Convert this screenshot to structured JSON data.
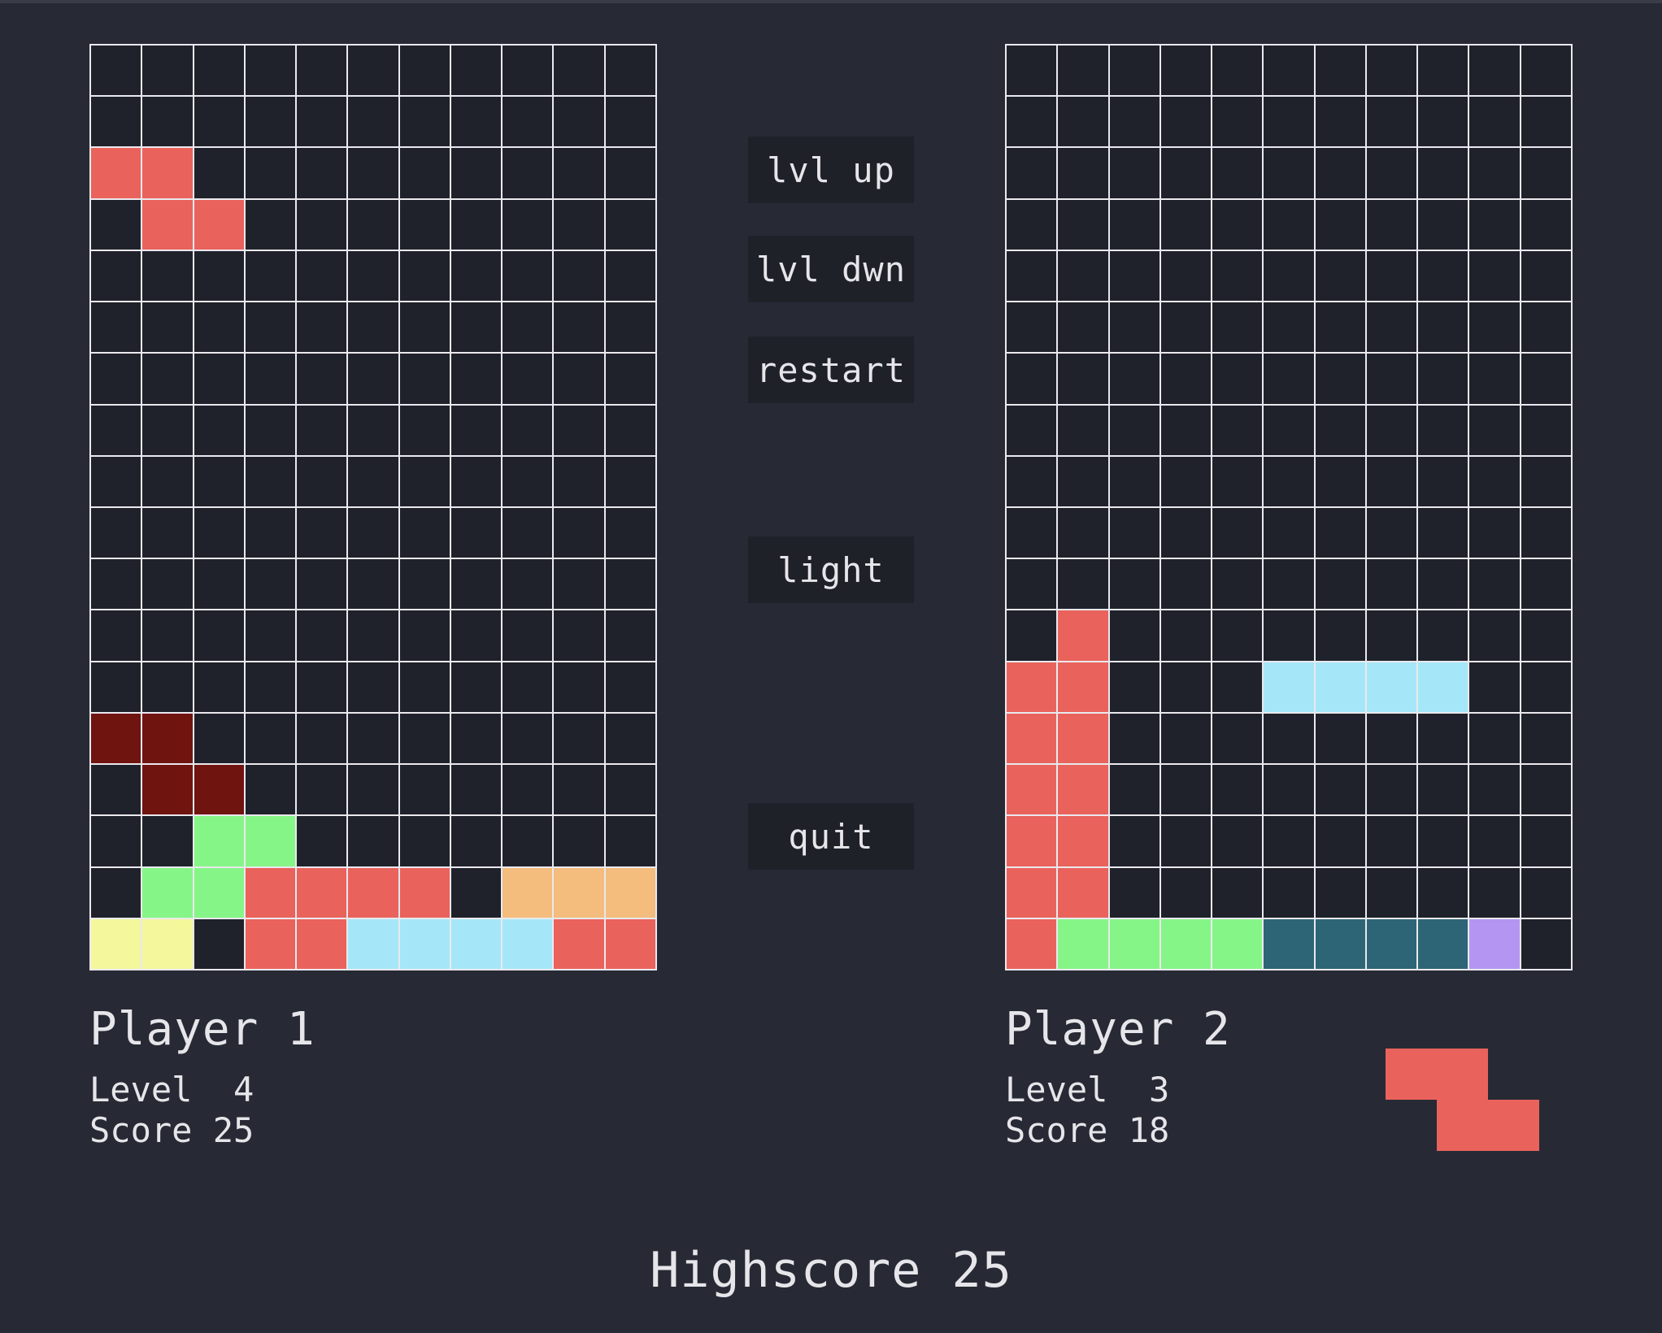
{
  "colors": {
    "background": "#272a35",
    "empty_cell": "#20222b",
    "grid_line": "#e9e9ee",
    "button_bg": "#1f2129",
    "text": "#e6e6ea"
  },
  "palette": {
    "R": "#ea625c",
    "D": "#701410",
    "G": "#86f587",
    "O": "#f4bc7d",
    "Y": "#f4f79c",
    "C": "#a5e7f8",
    "T": "#2e6576",
    "P": "#b496f2"
  },
  "menu": {
    "lvl_up": "lvl up",
    "lvl_down": "lvl dwn",
    "restart": "restart",
    "light": "light",
    "quit": "quit"
  },
  "player1": {
    "name": "Player 1",
    "level_text": "Level  4",
    "score_text": "Score 25",
    "board": [
      "...........",
      "...........",
      "RR.........",
      ".RR........",
      "...........",
      "...........",
      "...........",
      "...........",
      "...........",
      "...........",
      "...........",
      "...........",
      "...........",
      "DD.........",
      ".DD........",
      "..GG.......",
      ".GGRRRR.OOO",
      "YY.RRCCCCRR"
    ]
  },
  "player2": {
    "name": "Player 2",
    "level_text": "Level  3",
    "score_text": "Score 18",
    "board": [
      "...........",
      "...........",
      "...........",
      "...........",
      "...........",
      "...........",
      "...........",
      "...........",
      "...........",
      "...........",
      "...........",
      ".R.........",
      "RR...CCCC..",
      "RR.........",
      "RR.........",
      "RR.........",
      "RR.........",
      "RGGGGTTTTP."
    ],
    "next_piece": {
      "shape": "Z",
      "color": "R",
      "cells": [
        [
          0,
          0
        ],
        [
          0,
          1
        ],
        [
          1,
          1
        ],
        [
          1,
          2
        ]
      ]
    }
  },
  "highscore_text": "Highscore 25"
}
